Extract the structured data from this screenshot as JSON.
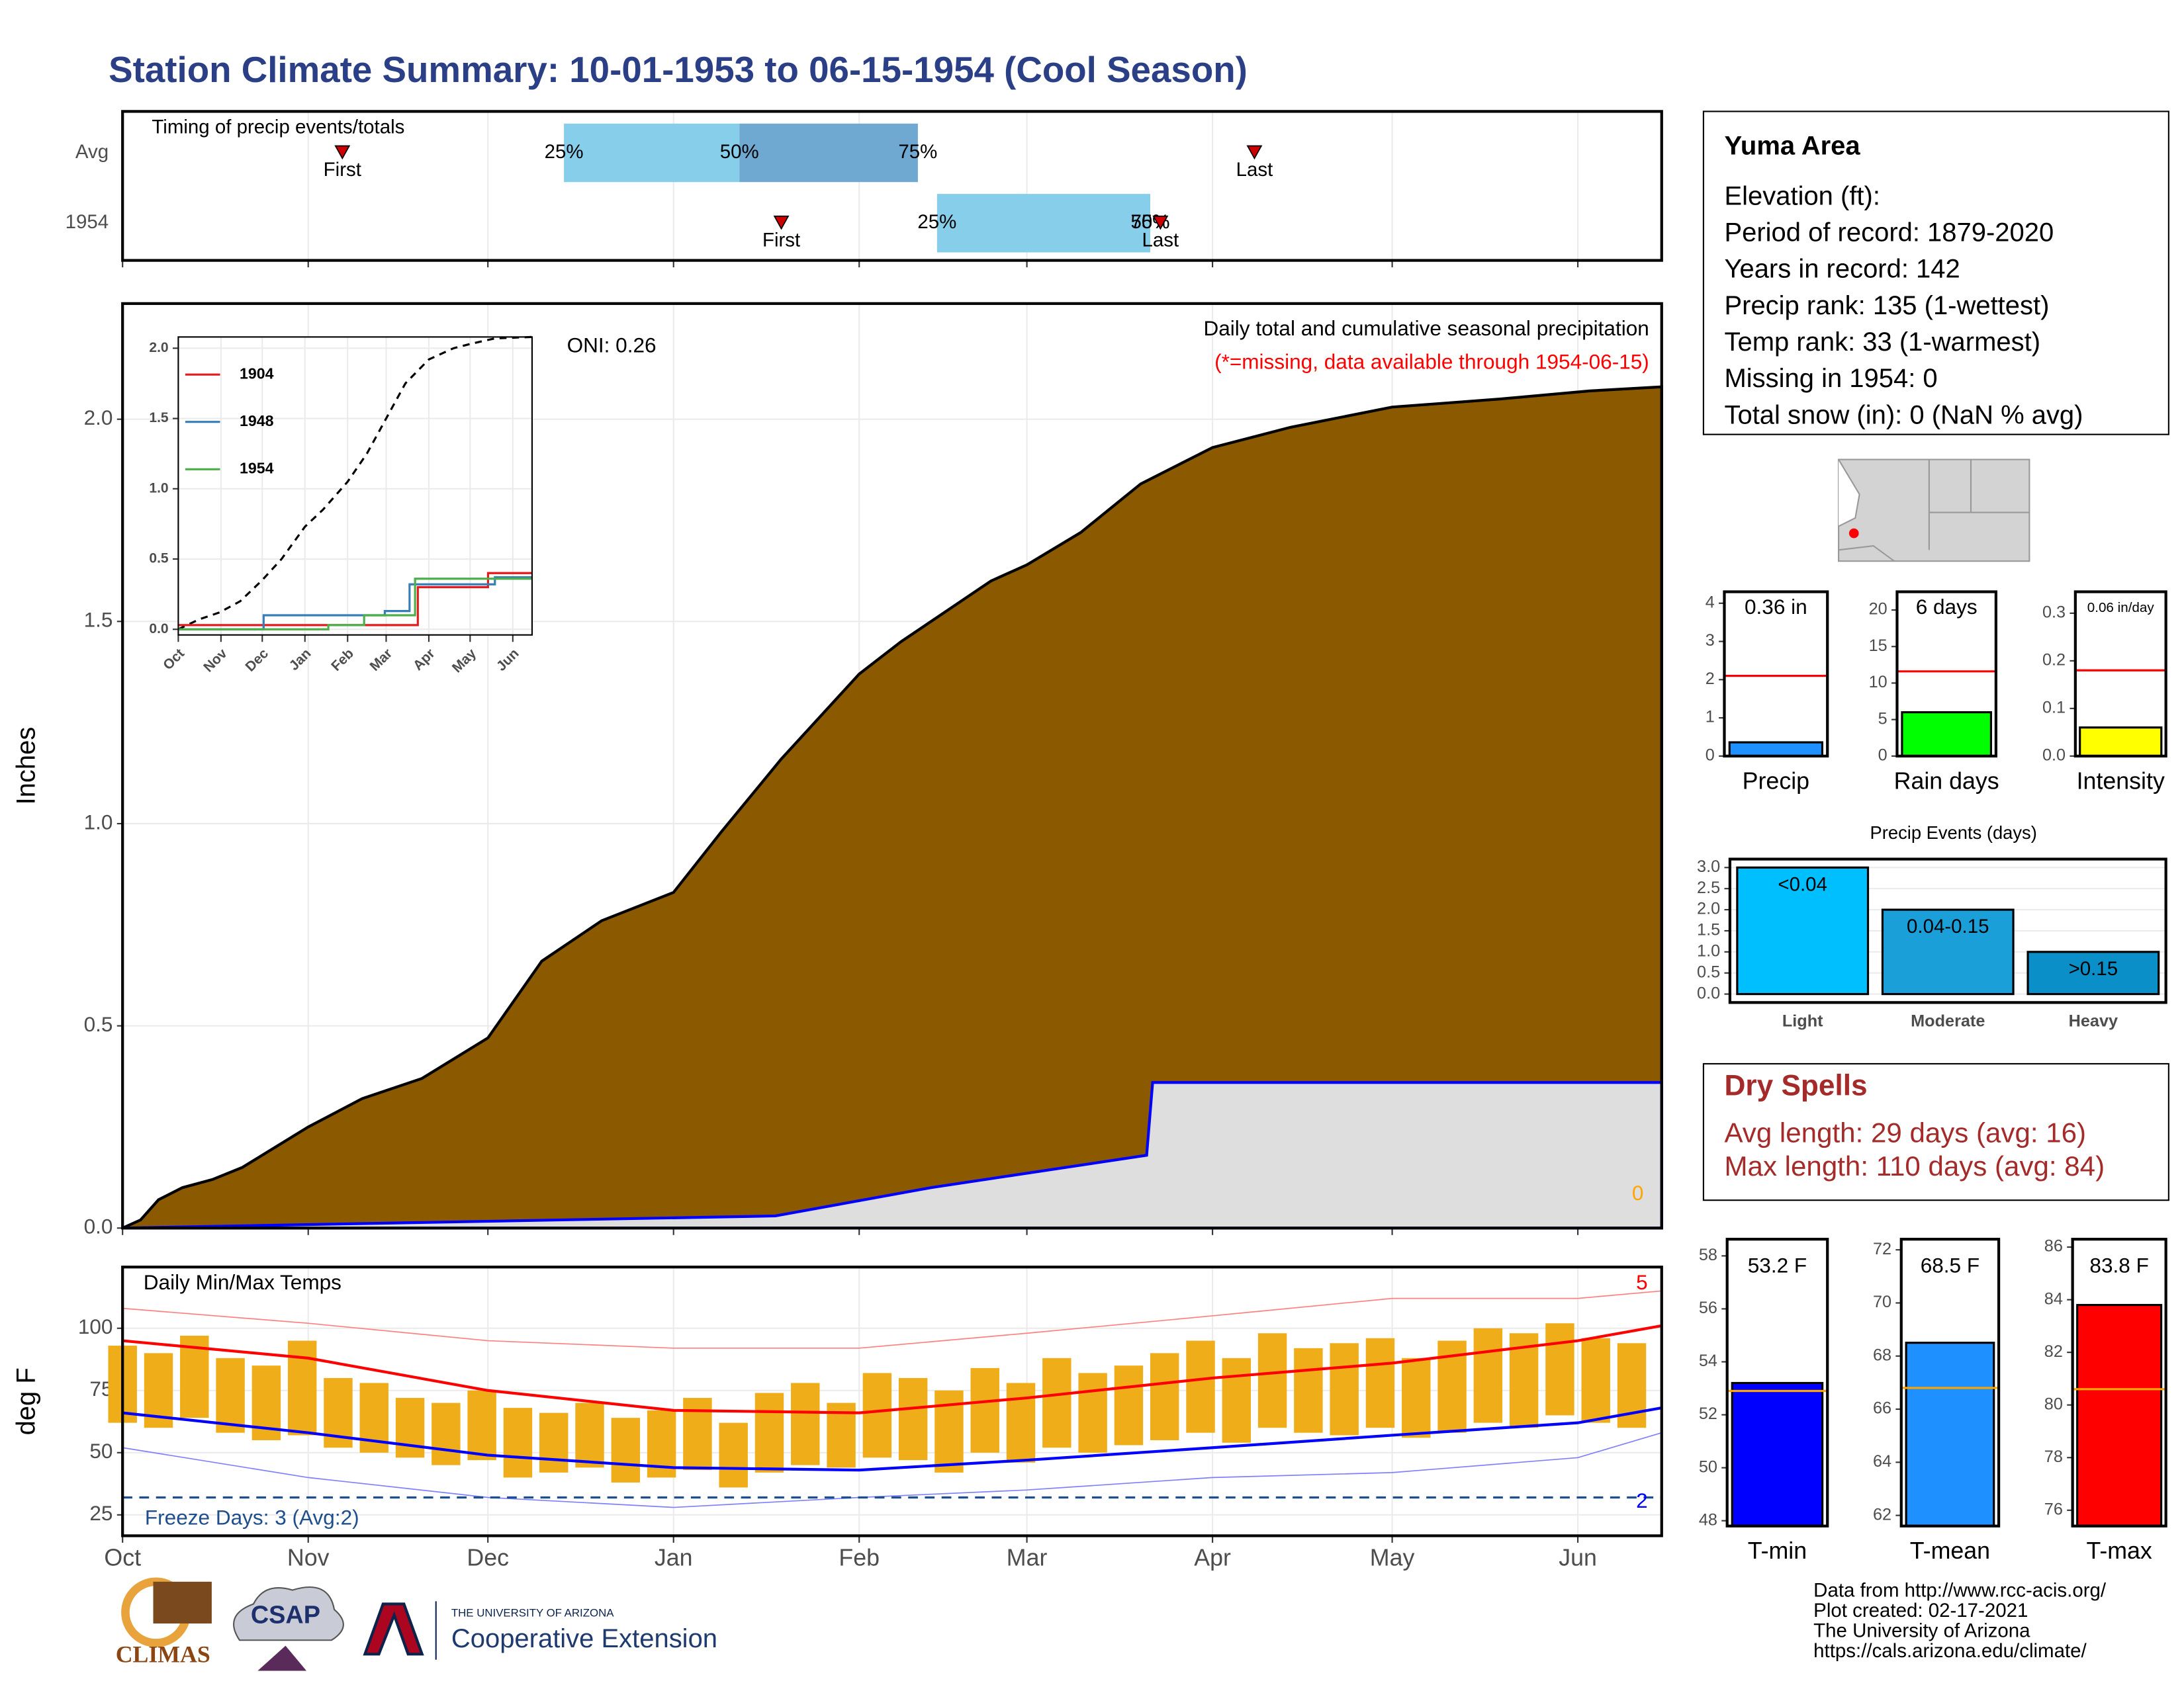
{
  "title": "Station Climate Summary: 10-01-1953 to 06-15-1954 (Cool Season)",
  "info": {
    "title": "Yuma Area",
    "lines": [
      "Elevation (ft):",
      "Period of record: 1879-2020",
      "Years in record: 142",
      "Precip rank: 135 (1-wettest)",
      "Temp rank: 33 (1-warmest)",
      "Missing in 1954: 0",
      "Total snow (in): 0 (NaN % avg)"
    ]
  },
  "dry_spells": {
    "title": "Dry Spells",
    "lines": [
      "Avg length: 29 days (avg: 16)",
      "Max length: 110 days (avg: 84)"
    ]
  },
  "footer": [
    "Data from http://www.rcc-acis.org/",
    "Plot created: 02-17-2021",
    "The University of Arizona",
    "https://cals.arizona.edu/climate/"
  ],
  "logos": {
    "climas": "CLIMAS",
    "csap": "CSAP",
    "university": "THE UNIVERSITY OF ARIZONA",
    "extension": "Cooperative Extension"
  },
  "chart_data": [
    {
      "type": "timing",
      "title": "Timing of precip events/totals",
      "categories": [
        "Avg",
        "1954"
      ],
      "rows": [
        {
          "first": 36.7,
          "q25": 73.7,
          "q50": 103,
          "q75": 132.8,
          "last": 189
        },
        {
          "first": 110,
          "q25": 136,
          "q50": 171.6,
          "q75": 171.6,
          "last": 173.3
        }
      ],
      "labels": {
        "first": "First",
        "last": "Last",
        "q25": "25%",
        "q50": "50%",
        "q75": "75%"
      },
      "colors": [
        "#87ceeb",
        "#6fa8d0"
      ],
      "marker_color": "#cc0000",
      "xlim": [
        0,
        257
      ],
      "xticks": [
        0,
        31,
        61,
        92,
        123,
        151,
        182,
        212,
        243
      ],
      "xtick_labels": false,
      "grid": true
    },
    {
      "type": "step-area",
      "subtitle": "Daily total and cumulative seasonal precipitation",
      "note": "(*=missing, data available through 1954-06-15)",
      "oni": "ONI: 0.26",
      "count_label": 0,
      "ylabel": "Inches",
      "xlim": [
        0,
        257
      ],
      "xticks": [
        0,
        31,
        61,
        92,
        123,
        151,
        182,
        212,
        243
      ],
      "xtick_labels": false,
      "ylim": [
        0,
        2.286
      ],
      "yticks": [
        {
          "value": 0,
          "label": "0.0"
        },
        0.5,
        {
          "value": 1,
          "label": "1.0"
        },
        1.5,
        {
          "value": 2,
          "label": "2.0"
        }
      ],
      "grid": true,
      "series": [
        {
          "color": "#000000",
          "fill": "#8b5a00",
          "x": [
            0,
            3,
            6,
            10,
            15,
            20,
            31,
            40,
            50,
            61,
            70,
            80,
            92,
            100,
            110,
            123,
            130,
            137,
            145,
            151,
            160,
            170,
            182,
            195,
            212,
            230,
            245,
            257
          ],
          "values": [
            0,
            0.02,
            0.07,
            0.1,
            0.12,
            0.15,
            0.25,
            0.32,
            0.37,
            0.47,
            0.66,
            0.76,
            0.83,
            0.98,
            1.16,
            1.37,
            1.45,
            1.52,
            1.6,
            1.64,
            1.72,
            1.84,
            1.93,
            1.98,
            2.03,
            2.05,
            2.07,
            2.08
          ]
        },
        {
          "color": "#0000ff",
          "fill": "#dedede",
          "x": [
            0,
            109,
            135,
            171,
            172,
            257
          ],
          "values": [
            0,
            0.03,
            0.1,
            0.18,
            0.36,
            0.36
          ]
        }
      ]
    },
    {
      "type": "line",
      "legend": "top-left",
      "xlim": [
        0,
        257
      ],
      "xticks": [
        {
          "value": 0,
          "label": "Oct"
        },
        {
          "value": 31,
          "label": "Nov"
        },
        {
          "value": 61,
          "label": "Dec"
        },
        {
          "value": 92,
          "label": "Jan"
        },
        {
          "value": 123,
          "label": "Feb"
        },
        {
          "value": 151,
          "label": "Mar"
        },
        {
          "value": 182,
          "label": "Apr"
        },
        {
          "value": 212,
          "label": "May"
        },
        {
          "value": 243,
          "label": "Jun"
        }
      ],
      "xtick_rotation": -45,
      "ylim": [
        -0.04,
        2.08
      ],
      "yticks": [
        {
          "value": 0,
          "label": "0.0"
        },
        0.5,
        {
          "value": 1,
          "label": "1.0"
        },
        1.5,
        {
          "value": 2,
          "label": "2.0"
        }
      ],
      "grid": true,
      "series": [
        {
          "color": "#000000",
          "dash": true,
          "x": [
            0,
            15,
            30,
            45,
            61,
            75,
            92,
            105,
            123,
            137,
            151,
            165,
            182,
            200,
            212,
            230,
            257
          ],
          "values": [
            0,
            0.07,
            0.12,
            0.2,
            0.35,
            0.5,
            0.73,
            0.85,
            1.05,
            1.25,
            1.5,
            1.75,
            1.92,
            2.0,
            2.03,
            2.07,
            2.08
          ]
        },
        {
          "name": "1904",
          "color": "#e41a1c",
          "step": true,
          "x": [
            0,
            174,
            225,
            257
          ],
          "values": [
            0.03,
            0.3,
            0.4,
            0.4
          ]
        },
        {
          "name": "1948",
          "color": "#377eb8",
          "step": true,
          "x": [
            0,
            62,
            150,
            168,
            230,
            257
          ],
          "values": [
            0,
            0.1,
            0.13,
            0.32,
            0.37,
            0.37
          ]
        },
        {
          "name": "1954",
          "color": "#4daf4a",
          "step": true,
          "x": [
            0,
            109,
            135,
            172,
            257
          ],
          "values": [
            0,
            0.03,
            0.1,
            0.36,
            0.36
          ]
        }
      ]
    },
    {
      "type": "temperature",
      "title": "Daily Min/Max Temps",
      "ylabel": "deg F",
      "freeze": 32,
      "freeze_label": "Freeze Days: 3 (Avg:2)",
      "high_count": 5,
      "low_count": 2,
      "xlim": [
        0,
        257
      ],
      "xticks": [
        {
          "value": 0,
          "label": "Oct"
        },
        {
          "value": 31,
          "label": "Nov"
        },
        {
          "value": 61,
          "label": "Dec"
        },
        {
          "value": 92,
          "label": "Jan"
        },
        {
          "value": 123,
          "label": "Feb"
        },
        {
          "value": 151,
          "label": "Mar"
        },
        {
          "value": 182,
          "label": "Apr"
        },
        {
          "value": 212,
          "label": "May"
        },
        {
          "value": 243,
          "label": "Jun"
        }
      ],
      "ylim": [
        16.6,
        124.6
      ],
      "yticks": [
        25,
        50,
        75,
        100
      ],
      "grid": true,
      "range": {
        "color": "#f0ad1a",
        "x": [
          0,
          6,
          12,
          18,
          24,
          30,
          36,
          42,
          48,
          54,
          60,
          66,
          72,
          78,
          84,
          90,
          96,
          102,
          108,
          114,
          120,
          126,
          132,
          138,
          144,
          150,
          156,
          162,
          168,
          174,
          180,
          186,
          192,
          198,
          204,
          210,
          216,
          222,
          228,
          234,
          240,
          246,
          252
        ],
        "low": [
          62,
          60,
          64,
          58,
          55,
          57,
          52,
          50,
          48,
          45,
          47,
          40,
          42,
          44,
          38,
          40,
          43,
          36,
          42,
          45,
          44,
          48,
          47,
          42,
          50,
          46,
          52,
          50,
          53,
          55,
          58,
          54,
          60,
          58,
          57,
          60,
          56,
          58,
          62,
          60,
          65,
          62,
          60
        ],
        "high": [
          93,
          90,
          97,
          88,
          85,
          95,
          80,
          78,
          72,
          70,
          75,
          68,
          66,
          70,
          64,
          67,
          72,
          62,
          74,
          78,
          70,
          82,
          80,
          75,
          84,
          78,
          88,
          82,
          85,
          90,
          95,
          88,
          98,
          92,
          94,
          96,
          88,
          95,
          100,
          98,
          102,
          96,
          94
        ]
      },
      "series": [
        {
          "color": "#ff8080",
          "width": 0.8,
          "x": [
            0,
            31,
            61,
            92,
            123,
            151,
            182,
            212,
            243,
            257
          ],
          "values": [
            108,
            102,
            95,
            92,
            92,
            98,
            105,
            112,
            112,
            115
          ]
        },
        {
          "color": "#8080ff",
          "width": 0.8,
          "x": [
            0,
            31,
            61,
            92,
            123,
            151,
            182,
            212,
            243,
            257
          ],
          "values": [
            52,
            40,
            32,
            28,
            32,
            35,
            40,
            42,
            48,
            58
          ]
        },
        {
          "color": "#ff0000",
          "width": 2,
          "x": [
            0,
            31,
            61,
            92,
            123,
            151,
            182,
            212,
            243,
            257
          ],
          "values": [
            95,
            88,
            75,
            67,
            66,
            72,
            80,
            86,
            95,
            101
          ]
        },
        {
          "color": "#0000ff",
          "width": 2,
          "x": [
            0,
            31,
            61,
            92,
            123,
            151,
            182,
            212,
            243,
            257
          ],
          "values": [
            66,
            58,
            49,
            44,
            43,
            47,
            52,
            57,
            62,
            68
          ]
        }
      ]
    },
    {
      "type": "bar",
      "categories": [
        "Precip"
      ],
      "values": [
        0.36
      ],
      "value_labels": [
        "0.36 in"
      ],
      "average": 2.1,
      "color": "#1e90ff",
      "average_color": "#ff0000",
      "ylim": [
        0,
        4.3
      ],
      "yticks": [
        0,
        1,
        2,
        3,
        4
      ]
    },
    {
      "type": "bar",
      "categories": [
        "Rain days"
      ],
      "values": [
        6
      ],
      "value_labels": [
        "6 days"
      ],
      "average": 11.6,
      "color": "#00ff00",
      "average_color": "#ff0000",
      "ylim": [
        0,
        22.5
      ],
      "yticks": [
        0,
        5,
        10,
        15,
        20
      ]
    },
    {
      "type": "bar",
      "categories": [
        "Intensity"
      ],
      "values": [
        0.06
      ],
      "value_labels": [
        "0.06 in/day"
      ],
      "average": 0.18,
      "color": "#ffff00",
      "average_color": "#ff0000",
      "ylim": [
        0,
        0.345
      ],
      "yticks": [
        {
          "value": 0,
          "label": "0.0"
        },
        0.1,
        0.2,
        0.3
      ]
    },
    {
      "type": "bar",
      "title": "Precip Events (days)",
      "categories": [
        "Light",
        "Moderate",
        "Heavy"
      ],
      "values": [
        3,
        2,
        1
      ],
      "bin_labels": [
        "<0.04",
        "0.04-0.15",
        ">0.15"
      ],
      "colors": [
        "#00bfff",
        "#1a9fd9",
        "#0a8fc8"
      ],
      "grid": true,
      "ylim": [
        -0.2,
        3.2
      ],
      "yticks": [
        {
          "value": 0,
          "label": "0.0"
        },
        0.5,
        {
          "value": 1,
          "label": "1.0"
        },
        1.5,
        {
          "value": 2,
          "label": "2.0"
        },
        2.5,
        {
          "value": 3,
          "label": "3.0"
        }
      ]
    },
    {
      "type": "bar",
      "categories": [
        "T-min"
      ],
      "values": [
        53.2
      ],
      "value_labels": [
        "53.2 F"
      ],
      "average": 52.9,
      "color": "#0000ff",
      "average_color": "#ffa500",
      "ylim": [
        47.8,
        58.63
      ],
      "yticks": [
        48,
        50,
        52,
        54,
        56,
        58
      ]
    },
    {
      "type": "bar",
      "categories": [
        "T-mean"
      ],
      "values": [
        68.5
      ],
      "value_labels": [
        "68.5 F"
      ],
      "average": 66.8,
      "color": "#1e90ff",
      "average_color": "#ffa500",
      "ylim": [
        61.6,
        72.4
      ],
      "yticks": [
        62,
        64,
        66,
        68,
        70,
        72
      ]
    },
    {
      "type": "bar",
      "categories": [
        "T-max"
      ],
      "values": [
        83.8
      ],
      "value_labels": [
        "83.8 F"
      ],
      "average": 80.6,
      "color": "#ff0000",
      "average_color": "#ffa500",
      "ylim": [
        75.4,
        86.3
      ],
      "yticks": [
        76,
        78,
        80,
        82,
        84,
        86
      ]
    }
  ]
}
